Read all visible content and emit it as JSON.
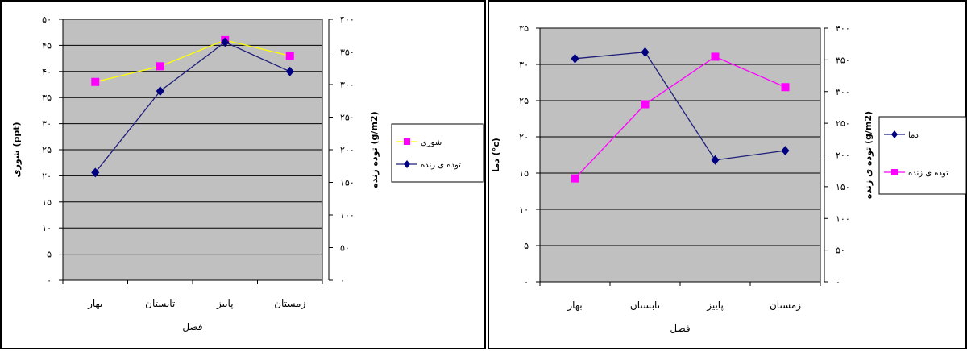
{
  "chart_data": [
    {
      "type": "line",
      "categories": [
        "بهار",
        "تابستان",
        "پاییز",
        "زمستان"
      ],
      "xlabel": "فصل",
      "ylabel_left": "شوری (ppt)",
      "ylabel_right": "توده زنده (g/m2)",
      "ylim_left": [
        0,
        50
      ],
      "yticks_left": [
        "۰",
        "۵",
        "۱۰",
        "۱۵",
        "۲۰",
        "۲۵",
        "۳۰",
        "۳۵",
        "۴۰",
        "۴۵",
        "۵۰"
      ],
      "ylim_right": [
        0,
        400
      ],
      "yticks_right": [
        "۰",
        "۵۰",
        "۱۰۰",
        "۱۵۰",
        "۲۰۰",
        "۲۵۰",
        "۳۰۰",
        "۳۵۰",
        "۴۰۰"
      ],
      "grid": true,
      "plot_background": "#c0c0c0",
      "legend_position": "right",
      "series": [
        {
          "name": "شوری",
          "axis": "left",
          "color": "#ffff00",
          "marker": "square",
          "marker_color": "#ff00ff",
          "values": [
            38,
            41,
            46,
            43
          ]
        },
        {
          "name": "توده ی زنده",
          "axis": "right",
          "color": "#1f1f7a",
          "marker": "diamond",
          "marker_color": "#000080",
          "values": [
            165,
            290,
            365,
            320
          ]
        }
      ]
    },
    {
      "type": "line",
      "categories": [
        "بهار",
        "تابستان",
        "پاییز",
        "زمستان"
      ],
      "xlabel": "فصل",
      "ylabel_left": "دما (°c)",
      "ylabel_right": "توده ی زنده (g/m2)",
      "ylim_left": [
        0,
        35
      ],
      "yticks_left": [
        "۰",
        "۵",
        "۱۰",
        "۱۵",
        "۲۰",
        "۲۵",
        "۳۰",
        "۳۵"
      ],
      "ylim_right": [
        0,
        400
      ],
      "yticks_right": [
        "۰",
        "۵۰",
        "۱۰۰",
        "۱۵۰",
        "۲۰۰",
        "۲۵۰",
        "۳۰۰",
        "۳۵۰",
        "۴۰۰"
      ],
      "grid": true,
      "plot_background": "#c0c0c0",
      "legend_position": "right",
      "series": [
        {
          "name": "دما",
          "axis": "left",
          "color": "#1f1f7a",
          "marker": "diamond",
          "marker_color": "#000080",
          "values": [
            30.8,
            31.7,
            16.8,
            18.1
          ]
        },
        {
          "name": "توده ی زنده",
          "axis": "right",
          "color": "#ff00ff",
          "marker": "square",
          "marker_color": "#ff00ff",
          "values": [
            163,
            280,
            355,
            307
          ]
        }
      ]
    }
  ]
}
